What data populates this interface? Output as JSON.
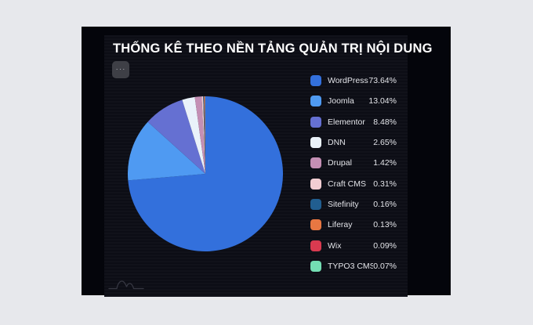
{
  "page": {
    "background": "#e7e8ec",
    "panel_background": "#04050b",
    "card_background": "#0c0d15"
  },
  "card": {
    "title": "THỐNG KÊ THEO NỀN TẢNG QUẢN TRỊ NỘI DUNG",
    "more_button_label": "···"
  },
  "chart_data": {
    "type": "pie",
    "title": "THỐNG KÊ THEO NỀN TẢNG QUẢN TRỊ NỘI DUNG",
    "legend_position": "right",
    "start_angle_deg": 0,
    "direction": "clockwise",
    "slices": [
      {
        "label": "WordPress",
        "value_pct": 73.64,
        "display": "73.64%",
        "color": "#3370dc"
      },
      {
        "label": "Joomla",
        "value_pct": 13.04,
        "display": "13.04%",
        "color": "#4f9af2"
      },
      {
        "label": "Elementor",
        "value_pct": 8.48,
        "display": "8.48%",
        "color": "#6570d2"
      },
      {
        "label": "DNN",
        "value_pct": 2.65,
        "display": "2.65%",
        "color": "#eaf2fa"
      },
      {
        "label": "Drupal",
        "value_pct": 1.42,
        "display": "1.42%",
        "color": "#c48fb4"
      },
      {
        "label": "Craft CMS",
        "value_pct": 0.31,
        "display": "0.31%",
        "color": "#f2ced3"
      },
      {
        "label": "Sitefinity",
        "value_pct": 0.16,
        "display": "0.16%",
        "color": "#215e90"
      },
      {
        "label": "Liferay",
        "value_pct": 0.13,
        "display": "0.13%",
        "color": "#e87742"
      },
      {
        "label": "Wix",
        "value_pct": 0.09,
        "display": "0.09%",
        "color": "#d93a50"
      },
      {
        "label": "TYPO3 CMS",
        "value_pct": 0.07,
        "display": "0.07%",
        "color": "#74ddb3"
      }
    ]
  },
  "icons": {
    "logo": "mountains-logo"
  }
}
